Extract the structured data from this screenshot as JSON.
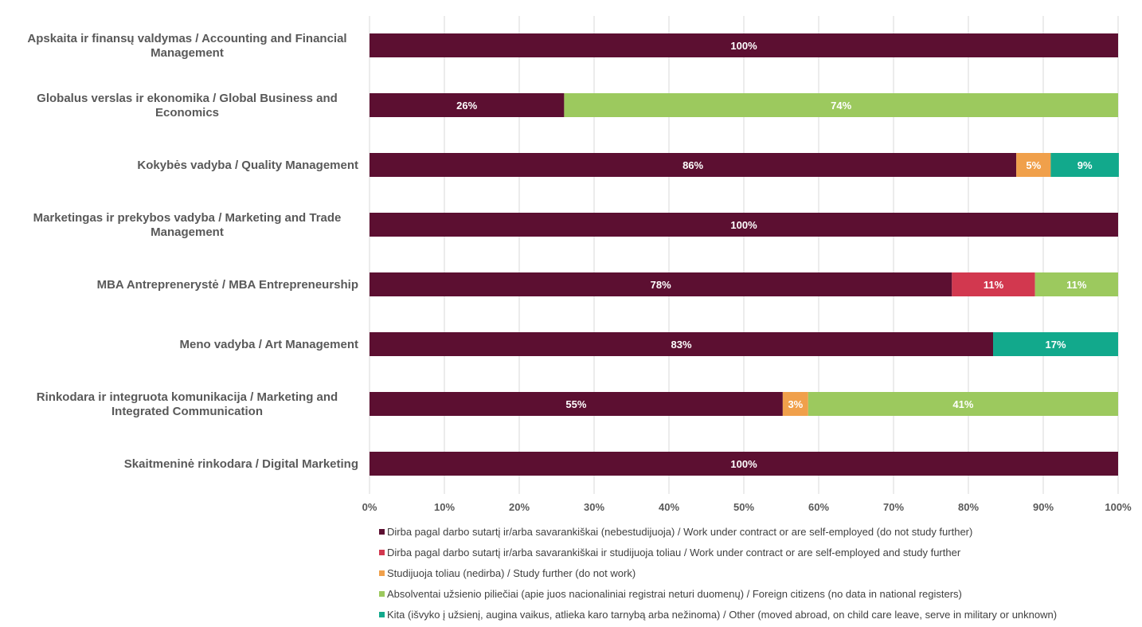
{
  "chart_data": {
    "type": "bar",
    "orientation": "horizontal",
    "stacked": "percent",
    "categories": [
      [
        "Apskaita ir finansų valdymas / Accounting and Financial",
        "Management"
      ],
      [
        "Globalus verslas ir ekonomika / Global Business and",
        "Economics"
      ],
      [
        "Kokybės vadyba / Quality Management"
      ],
      [
        "Marketingas ir prekybos vadyba / Marketing and Trade",
        "Management"
      ],
      [
        "MBA Antreprenerystė / MBA Entrepreneurship"
      ],
      [
        "Meno vadyba / Art Management"
      ],
      [
        "Rinkodara ir integruota komunikacija / Marketing and",
        "Integrated Communication"
      ],
      [
        "Skaitmeninė rinkodara / Digital Marketing"
      ]
    ],
    "series": [
      {
        "name": "Dirba pagal darbo sutartį ir/arba savarankiškai (nebestudijuoja) / Work under contract or are self-employed (do not study further)",
        "color": "#5c0f31",
        "values": [
          100,
          26,
          86.4,
          100,
          77.8,
          83.3,
          55.2,
          100
        ]
      },
      {
        "name": "Dirba pagal darbo sutartį ir/arba savarankiškai  ir studijuoja toliau / Work under contract or are self-employed and study further",
        "color": "#d2384f",
        "values": [
          0,
          0,
          0,
          0,
          11.1,
          0,
          0,
          0
        ]
      },
      {
        "name": "Studijuoja toliau (nedirba) / Study further (do not work)",
        "color": "#f0a04b",
        "values": [
          0,
          0,
          4.6,
          0,
          0,
          0,
          3.4,
          0
        ]
      },
      {
        "name": "Absolventai užsienio piliečiai (apie juos nacionaliniai registrai neturi duomenų) / Foreign citizens (no data in national registers)",
        "color": "#9cc95e",
        "values": [
          0,
          74,
          0,
          0,
          11.1,
          0,
          41.4,
          0
        ]
      },
      {
        "name": "Kita (išvyko į užsienį, augina vaikus, atlieka karo tarnybą arba nežinoma) / Other (moved abroad, on child care leave, serve in military or unknown)",
        "color": "#12a98c",
        "values": [
          0,
          0,
          9.1,
          0,
          0,
          16.7,
          0,
          0
        ]
      }
    ],
    "data_labels": [
      [
        "100%",
        "",
        "",
        "",
        ""
      ],
      [
        "26%",
        "",
        "",
        "74%",
        ""
      ],
      [
        "86%",
        "",
        "5%",
        "",
        "9%"
      ],
      [
        "100%",
        "",
        "",
        "",
        ""
      ],
      [
        "78%",
        "11%",
        "",
        "11%",
        ""
      ],
      [
        "83%",
        "",
        "",
        "",
        "17%"
      ],
      [
        "55%",
        "",
        "3%",
        "41%",
        ""
      ],
      [
        "100%",
        "",
        "",
        "",
        ""
      ]
    ],
    "x_ticks": [
      "0%",
      "10%",
      "20%",
      "30%",
      "40%",
      "50%",
      "60%",
      "70%",
      "80%",
      "90%",
      "100%"
    ],
    "xlim": [
      0,
      100
    ],
    "grid": true,
    "legend_position": "bottom"
  }
}
